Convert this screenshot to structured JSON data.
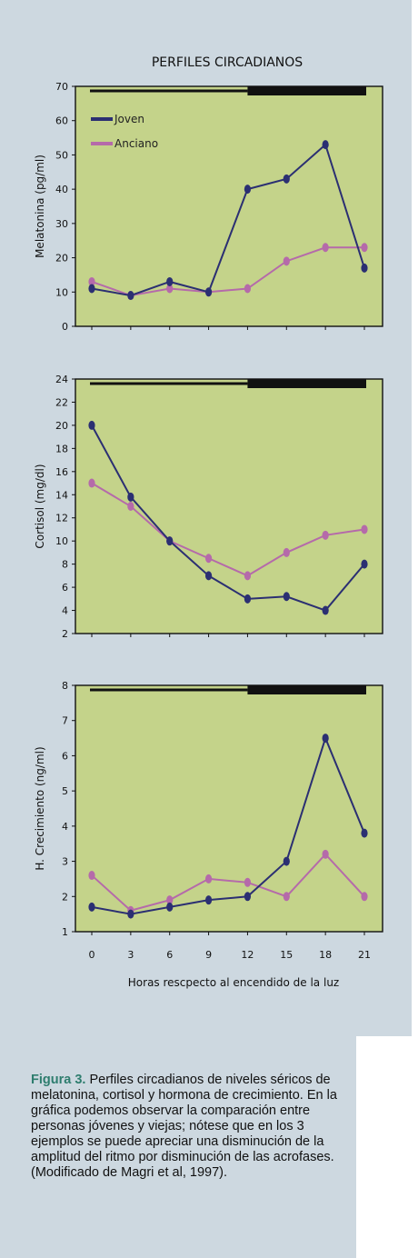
{
  "suptitle": "PERFILES CIRCADIANOS",
  "colors": {
    "panel_bg": "#cdd8e0",
    "plot_bg": "#c4d38a",
    "joven": "#2b2f72",
    "anciano": "#b56aaa"
  },
  "caption": {
    "label": "Figura 3.",
    "text": "Perfiles circadianos de niveles séricos de melatonina, cortisol y hormona de crecimiento. En la gráfica podemos observar la comparación entre personas jóvenes y viejas; nótese que en los 3 ejemplos se puede apreciar una disminución de la amplitud del ritmo por disminución de las acrofases. (Modificado de Magri et al, 1997)."
  },
  "chart_data": [
    {
      "type": "line",
      "ylabel": "Melatonina (pg/ml)",
      "ylim": [
        0,
        70
      ],
      "yticks": [
        0,
        10,
        20,
        30,
        40,
        50,
        60,
        70
      ],
      "x": [
        0,
        3,
        6,
        9,
        12,
        15,
        18,
        21
      ],
      "series": [
        {
          "name": "Joven",
          "values": [
            11,
            9,
            13,
            10,
            40,
            43,
            53,
            17
          ]
        },
        {
          "name": "Anciano",
          "values": [
            13,
            9,
            11,
            10,
            11,
            19,
            23,
            23
          ]
        }
      ],
      "light_bar": {
        "light_until": 12,
        "dark_from": 12
      },
      "legend": "top-left"
    },
    {
      "type": "line",
      "ylabel": "Cortisol (mg/dl)",
      "ylim": [
        2,
        24
      ],
      "yticks": [
        2,
        4,
        6,
        8,
        10,
        12,
        14,
        16,
        18,
        20,
        22,
        24
      ],
      "x": [
        0,
        3,
        6,
        9,
        12,
        15,
        18,
        21
      ],
      "series": [
        {
          "name": "Joven",
          "values": [
            20,
            13.8,
            10,
            7,
            5,
            5.2,
            4,
            8
          ]
        },
        {
          "name": "Anciano",
          "values": [
            15,
            13,
            10,
            8.5,
            7,
            9,
            10.5,
            11
          ]
        }
      ],
      "light_bar": {
        "light_until": 12,
        "dark_from": 12
      }
    },
    {
      "type": "line",
      "ylabel": "H. Crecimiento (ng/ml)",
      "xlabel": "Horas rescpecto al encendido de la luz",
      "ylim": [
        1,
        8
      ],
      "yticks": [
        1,
        2,
        3,
        4,
        5,
        6,
        7,
        8
      ],
      "x": [
        0,
        3,
        6,
        9,
        12,
        15,
        18,
        21
      ],
      "xticks": [
        "0",
        "3",
        "6",
        "9",
        "12",
        "15",
        "18",
        "21"
      ],
      "series": [
        {
          "name": "Joven",
          "values": [
            1.7,
            1.5,
            1.7,
            1.9,
            2,
            3,
            6.5,
            3.8
          ]
        },
        {
          "name": "Anciano",
          "values": [
            2.6,
            1.6,
            1.9,
            2.5,
            2.4,
            2,
            3.2,
            2
          ]
        }
      ],
      "light_bar": {
        "light_until": 12,
        "dark_from": 12
      }
    }
  ]
}
